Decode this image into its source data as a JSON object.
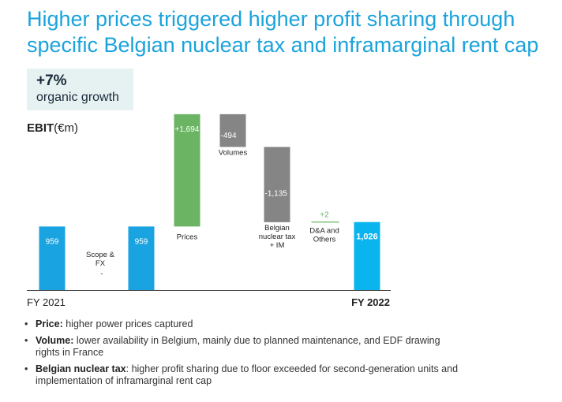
{
  "title_line1": "Higher prices triggered higher profit sharing through",
  "title_line2": "specific Belgian nuclear tax and inframarginal rent cap",
  "badge": {
    "value": "+7%",
    "label": "organic growth"
  },
  "ebit": {
    "bold": "EBIT",
    "unit": "(€m)"
  },
  "colors": {
    "title": "#1ba3dc",
    "total": "#19a3e0",
    "total_end": "#0ab4ef",
    "increase": "#6ab463",
    "decrease": "#858585",
    "badge_bg": "#e6f2f1"
  },
  "chart_data": {
    "type": "waterfall",
    "y_baseline": 0,
    "steps": [
      {
        "label": "FY 2021",
        "kind": "total",
        "value": 959,
        "value_label": "959",
        "desc": []
      },
      {
        "label": "Scope & FX",
        "kind": "delta",
        "value": 0,
        "value_label": "-",
        "desc": [
          "Scope &",
          "FX"
        ]
      },
      {
        "label": "",
        "kind": "total",
        "value": 959,
        "value_label": "959",
        "desc": []
      },
      {
        "label": "Prices",
        "kind": "delta",
        "value": 1694,
        "value_label": "+1,694",
        "desc": [
          "Prices"
        ]
      },
      {
        "label": "Volumes",
        "kind": "delta",
        "value": -494,
        "value_label": "-494",
        "desc": [
          "Volumes"
        ]
      },
      {
        "label": "Belgian nuclear tax + IM",
        "kind": "delta",
        "value": -1135,
        "value_label": "-1,135",
        "desc": [
          "Belgian",
          "nuclear tax",
          "+ IM"
        ]
      },
      {
        "label": "D&A and Others",
        "kind": "delta",
        "value": 2,
        "value_label": "+2",
        "desc": [
          "D&A and",
          "Others"
        ]
      },
      {
        "label": "FY 2022",
        "kind": "total",
        "value": 1026,
        "value_label": "1,026",
        "desc": []
      }
    ],
    "x_labels": {
      "start": "FY 2021",
      "end": "FY 2022"
    }
  },
  "bullets": [
    {
      "bold": "Price:",
      "text": " higher power prices captured"
    },
    {
      "bold": "Volume:",
      "text": " lower availability in Belgium, mainly due to planned maintenance, and EDF drawing rights in France"
    },
    {
      "bold": "Belgian nuclear tax",
      "text": ": higher profit sharing due to floor exceeded for second-generation units and implementation of inframarginal rent cap"
    }
  ]
}
